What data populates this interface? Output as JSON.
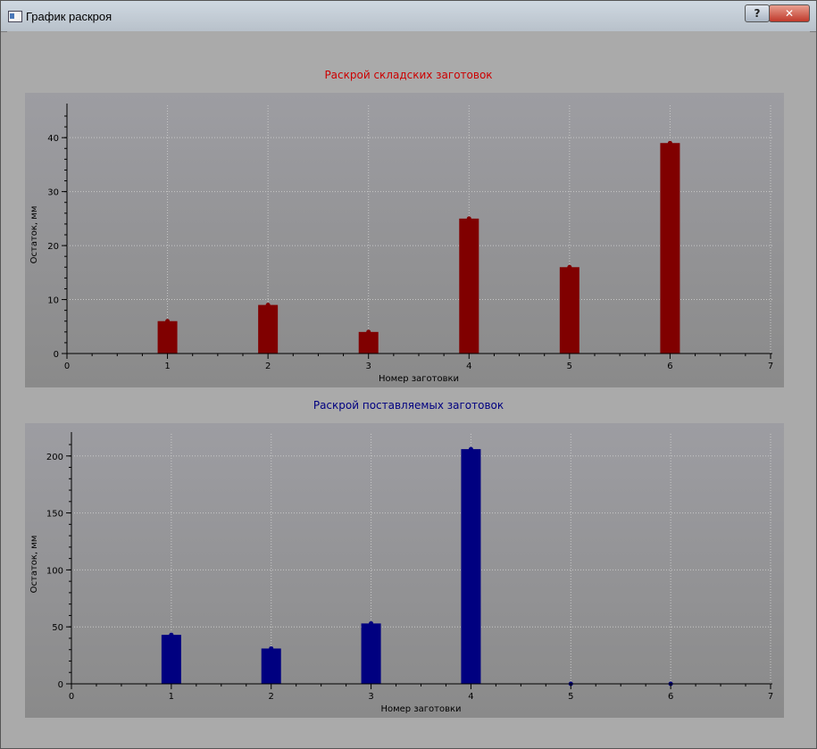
{
  "window": {
    "title": "График раскроя",
    "help_label": "?",
    "close_label": "✕",
    "icon": "window-app-icon"
  },
  "colors": {
    "window_bg": "#aaaaaa",
    "plot_bg_top": "#9d9da2",
    "plot_bg_bottom": "#8a8a8a",
    "grid": "#c8c8c8",
    "series1": "#800000",
    "series2": "#000080",
    "title1": "#cc0000",
    "title2": "#000080"
  },
  "chart_data": [
    {
      "type": "bar",
      "title": "Раскрой складских заготовок",
      "xlabel": "Номер заготовки",
      "ylabel": "Остаток, мм",
      "x": [
        1,
        2,
        3,
        4,
        5,
        6
      ],
      "values": [
        6,
        9,
        4,
        25,
        16,
        39
      ],
      "xlim": [
        0,
        7
      ],
      "ylim": [
        0,
        44
      ],
      "xticks": [
        0,
        1,
        2,
        3,
        4,
        5,
        6,
        7
      ],
      "yticks": [
        0,
        10,
        20,
        30,
        40
      ],
      "grid": true,
      "color": "#800000"
    },
    {
      "type": "bar",
      "title": "Раскрой поставляемых заготовок",
      "xlabel": "Номер заготовки",
      "ylabel": "Остаток, мм",
      "x": [
        1,
        2,
        3,
        4,
        5,
        6
      ],
      "values": [
        43,
        31,
        53,
        206,
        0,
        0
      ],
      "xlim": [
        0,
        7
      ],
      "ylim": [
        0,
        210
      ],
      "xticks": [
        0,
        1,
        2,
        3,
        4,
        5,
        6,
        7
      ],
      "yticks": [
        0,
        50,
        100,
        150,
        200
      ],
      "grid": true,
      "color": "#000080"
    }
  ]
}
